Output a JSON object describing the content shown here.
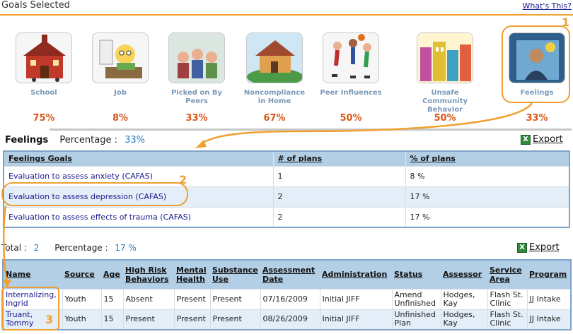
{
  "header": {
    "title": "Goals Selected",
    "whats_this": "What's This?"
  },
  "goals": [
    {
      "label": "School",
      "pct": "75%",
      "icon": "school-icon"
    },
    {
      "label": "Job",
      "pct": "8%",
      "icon": "job-icon"
    },
    {
      "label": "Picked on By Peers",
      "pct": "33%",
      "icon": "peers-icon"
    },
    {
      "label": "Noncompliance in Home",
      "pct": "67%",
      "icon": "home-icon"
    },
    {
      "label": "Peer Influences",
      "pct": "50%",
      "icon": "peer-influences-icon"
    },
    {
      "label": "Unsafe Community Behavior",
      "pct": "50%",
      "icon": "community-icon"
    },
    {
      "label": "Feelings",
      "pct": "33%",
      "icon": "feelings-icon"
    }
  ],
  "callouts": {
    "one": "1",
    "two": "2",
    "three": "3"
  },
  "feelings": {
    "title": "Feelings",
    "percentage_label": "Percentage :",
    "percentage_value": "33%",
    "export": "Export"
  },
  "goals_table": {
    "headers": [
      "Feelings Goals",
      "# of plans",
      "% of plans"
    ],
    "rows": [
      [
        "Evaluation to assess anxiety (CAFAS)",
        "1",
        "8 %"
      ],
      [
        "Evaluation to assess depression (CAFAS)",
        "2",
        "17 %"
      ],
      [
        "Evaluation to assess effects of trauma (CAFAS)",
        "2",
        "17 %"
      ]
    ]
  },
  "totals": {
    "total_label": "Total :",
    "total_value": "2",
    "percentage_label": "Percentage :",
    "percentage_value": "17 %",
    "export": "Export"
  },
  "people_table": {
    "headers": [
      "Name",
      "Source",
      "Age",
      "High Risk Behaviors",
      "Mental Health",
      "Substance Use",
      "Assessment Date",
      "Administration",
      "Status",
      "Assessor",
      "Service Area",
      "Program"
    ],
    "rows": [
      [
        "Internalizing, Ingrid",
        "Youth",
        "15",
        "Absent",
        "Present",
        "Present",
        "07/16/2009",
        "Initial JIFF",
        "Amend Unfinished",
        "Hodges, Kay",
        "Flash St. Clinic",
        "JJ Intake"
      ],
      [
        "Truant, Tommy",
        "Youth",
        "15",
        "Present",
        "Present",
        "Present",
        "08/26/2009",
        "Initial JIFF",
        "Unfinished Plan",
        "Hodges, Kay",
        "Flash St. Clinic",
        "JJ Intake"
      ]
    ]
  },
  "colors": {
    "accent": "#f0a030",
    "header_bg": "#b3cfe6",
    "pct": "#d9571a",
    "link_blue": "#2a7ab8"
  }
}
